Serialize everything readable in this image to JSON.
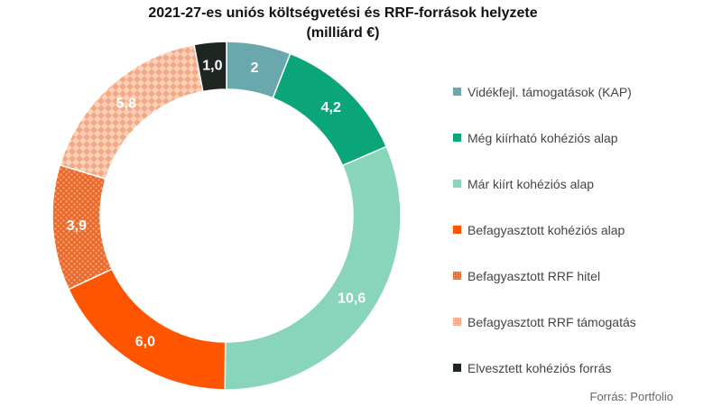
{
  "chart_data": {
    "type": "pie",
    "title": "2021-27-es uniós költségvetési és RRF-források helyzete",
    "subtitle": "(milliárd €)",
    "legend_position": "right",
    "slices": [
      {
        "name": "Vidékfejl. támogatások (KAP)",
        "value": 2,
        "label": "2",
        "color": "#6aa8ae",
        "pattern": "solid"
      },
      {
        "name": "Még kiírható kohéziós alap",
        "value": 4.2,
        "label": "4,2",
        "color": "#0aa67a",
        "pattern": "solid"
      },
      {
        "name": "Már kiírt kohéziós alap",
        "value": 10.6,
        "label": "10,6",
        "color": "#88d5bc",
        "pattern": "solid"
      },
      {
        "name": "Befagyasztott kohéziós alap",
        "value": 6.0,
        "label": "6,0",
        "color": "#ff5500",
        "pattern": "solid"
      },
      {
        "name": "Befagyasztott RRF hitel",
        "value": 3.9,
        "label": "3,9",
        "color": "#f08348",
        "pattern": "dots"
      },
      {
        "name": "Befagyasztott RRF támogatás",
        "value": 5.8,
        "label": "5,8",
        "color": "#f9b48d",
        "pattern": "diamonds"
      },
      {
        "name": "Elvesztett kohéziós forrás",
        "value": 1.0,
        "label": "1,0",
        "color": "#1f2622",
        "pattern": "solid"
      }
    ]
  },
  "source": "Forrás: Portfolio"
}
